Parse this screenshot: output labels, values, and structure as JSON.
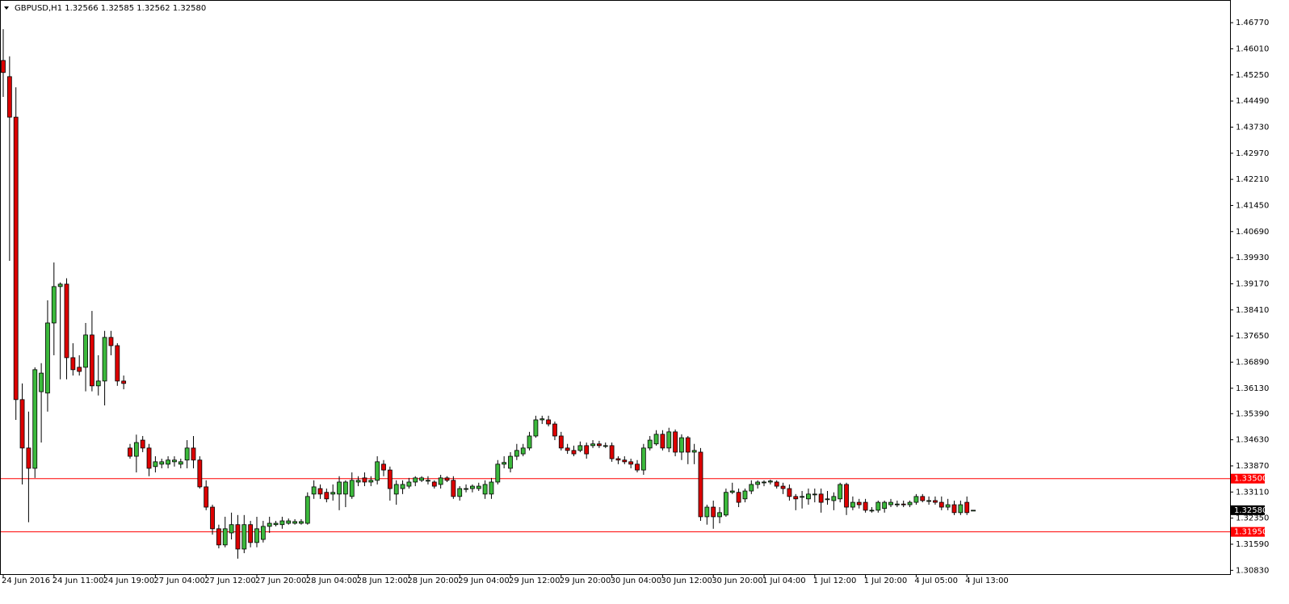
{
  "chart_data": {
    "type": "candlestick",
    "title": "GBPUSD,H1  1.32566 1.32585 1.32562 1.32580",
    "up_color": "#3cb93c",
    "down_color": "#dd0000",
    "ylim": [
      1.3072,
      1.4743
    ],
    "yticks": [
      {
        "value": 1.4677,
        "label": "1.46770"
      },
      {
        "value": 1.4601,
        "label": "1.46010"
      },
      {
        "value": 1.4525,
        "label": "1.45250"
      },
      {
        "value": 1.4449,
        "label": "1.44490"
      },
      {
        "value": 1.4373,
        "label": "1.43730"
      },
      {
        "value": 1.4297,
        "label": "1.42970"
      },
      {
        "value": 1.4221,
        "label": "1.42210"
      },
      {
        "value": 1.4145,
        "label": "1.41450"
      },
      {
        "value": 1.4069,
        "label": "1.40690"
      },
      {
        "value": 1.3993,
        "label": "1.39930"
      },
      {
        "value": 1.3917,
        "label": "1.39170"
      },
      {
        "value": 1.3841,
        "label": "1.38410"
      },
      {
        "value": 1.3765,
        "label": "1.37650"
      },
      {
        "value": 1.3689,
        "label": "1.36890"
      },
      {
        "value": 1.3613,
        "label": "1.36130"
      },
      {
        "value": 1.3539,
        "label": "1.35390"
      },
      {
        "value": 1.3463,
        "label": "1.34630"
      },
      {
        "value": 1.3387,
        "label": "1.33870"
      },
      {
        "value": 1.3311,
        "label": "1.33110"
      },
      {
        "value": 1.3235,
        "label": "1.32350"
      },
      {
        "value": 1.3159,
        "label": "1.31590"
      },
      {
        "value": 1.3083,
        "label": "1.30830"
      }
    ],
    "levels": [
      {
        "value": 1.335,
        "label": "1.33500"
      },
      {
        "value": 1.3195,
        "label": "1.31950"
      }
    ],
    "level_color": "#ff0000",
    "current_price": {
      "value": 1.3258,
      "label": "1.32580"
    },
    "categories": [
      "24 Jun 2016",
      null,
      null,
      null,
      null,
      null,
      null,
      null,
      "24 Jun 11:00",
      null,
      null,
      null,
      null,
      null,
      null,
      null,
      "24 Jun 19:00",
      null,
      null,
      null,
      null,
      null,
      null,
      null,
      "27 Jun 04:00",
      null,
      null,
      null,
      null,
      null,
      null,
      null,
      "27 Jun 12:00",
      null,
      null,
      null,
      null,
      null,
      null,
      null,
      "27 Jun 20:00",
      null,
      null,
      null,
      null,
      null,
      null,
      null,
      "28 Jun 04:00",
      null,
      null,
      null,
      null,
      null,
      null,
      null,
      "28 Jun 12:00",
      null,
      null,
      null,
      null,
      null,
      null,
      null,
      "28 Jun 20:00",
      null,
      null,
      null,
      null,
      null,
      null,
      null,
      "29 Jun 04:00",
      null,
      null,
      null,
      null,
      null,
      null,
      null,
      "29 Jun 12:00",
      null,
      null,
      null,
      null,
      null,
      null,
      null,
      "29 Jun 20:00",
      null,
      null,
      null,
      null,
      null,
      null,
      null,
      "30 Jun 04:00",
      null,
      null,
      null,
      null,
      null,
      null,
      null,
      "30 Jun 12:00",
      null,
      null,
      null,
      null,
      null,
      null,
      null,
      "30 Jun 20:00",
      null,
      null,
      null,
      null,
      null,
      null,
      null,
      "1 Jul 04:00",
      null,
      null,
      null,
      null,
      null,
      null,
      null,
      "1 Jul 12:00",
      null,
      null,
      null,
      null,
      null,
      null,
      null,
      "1 Jul 20:00",
      null,
      null,
      null,
      null,
      null,
      null,
      null,
      "4 Jul 05:00",
      null,
      null,
      null,
      null,
      null,
      null,
      null,
      "4 Jul 13:00",
      null
    ],
    "open": [
      1.4567,
      1.452,
      1.4402,
      1.358,
      1.3439,
      1.338,
      1.3603,
      1.3599,
      1.3803,
      1.3909,
      1.3916,
      1.3702,
      1.3674,
      1.3674,
      1.3768,
      1.362,
      1.3634,
      1.3761,
      1.3737,
      1.3634,
      1.3439,
      1.3415,
      1.3462,
      1.3439,
      1.3385,
      1.3392,
      1.3392,
      1.3399,
      1.3392,
      1.3404,
      1.3439,
      1.3404,
      1.3326,
      1.3267,
      1.3204,
      1.3157,
      1.3192,
      1.3216,
      1.3145,
      1.3216,
      1.3164,
      1.3173,
      1.3211,
      1.3216,
      1.3216,
      1.322,
      1.322,
      1.322,
      1.322,
      1.3305,
      1.3321,
      1.331,
      1.3305,
      1.3305,
      1.3305,
      1.3298,
      1.334,
      1.3352,
      1.334,
      1.3345,
      1.3392,
      1.3375,
      1.3305,
      1.3321,
      1.3328,
      1.334,
      1.3345,
      1.3345,
      1.334,
      1.3333,
      1.3352,
      1.3345,
      1.3298,
      1.3321,
      1.3321,
      1.3321,
      1.3305,
      1.3305,
      1.334,
      1.3392,
      1.338,
      1.3415,
      1.3422,
      1.3439,
      1.3474,
      1.3521,
      1.3521,
      1.3509,
      1.3474,
      1.3439,
      1.3432,
      1.3432,
      1.3446,
      1.3446,
      1.3451,
      1.3446,
      1.3446,
      1.3408,
      1.3404,
      1.3399,
      1.3392,
      1.3375,
      1.3439,
      1.3451,
      1.3479,
      1.3439,
      1.3486,
      1.3427,
      1.3469,
      1.3427,
      1.3427,
      1.3239,
      1.3267,
      1.3239,
      1.3244,
      1.331,
      1.331,
      1.3291,
      1.3314,
      1.3333,
      1.334,
      1.334,
      1.334,
      1.3328,
      1.3321,
      1.3298,
      1.3298,
      1.3291,
      1.3305,
      1.3305,
      1.3291,
      1.3286,
      1.3291,
      1.3333,
      1.3267,
      1.3281,
      1.3281,
      1.3258,
      1.3258,
      1.3263,
      1.3274,
      1.3274,
      1.3276,
      1.3274,
      1.3281,
      1.3298,
      1.3286,
      1.3286,
      1.3281,
      1.3267,
      1.3274,
      1.3251,
      1.3281,
      1.32566
    ],
    "high": [
      1.4658,
      1.4579,
      1.4489,
      1.3627,
      1.3545,
      1.3674,
      1.3686,
      1.3869,
      1.3979,
      1.3921,
      1.3933,
      1.3744,
      1.3709,
      1.3803,
      1.3838,
      1.3709,
      1.378,
      1.378,
      1.3744,
      1.365,
      1.3451,
      1.3478,
      1.3474,
      1.3451,
      1.3415,
      1.3408,
      1.3415,
      1.3415,
      1.3408,
      1.3462,
      1.3474,
      1.3415,
      1.3345,
      1.3274,
      1.3216,
      1.3239,
      1.3251,
      1.3244,
      1.3244,
      1.3227,
      1.3239,
      1.3227,
      1.3239,
      1.3227,
      1.3239,
      1.3234,
      1.3232,
      1.3232,
      1.331,
      1.3345,
      1.3333,
      1.3321,
      1.3333,
      1.3357,
      1.3345,
      1.3368,
      1.3357,
      1.3368,
      1.3357,
      1.3415,
      1.3404,
      1.3385,
      1.3345,
      1.3345,
      1.3352,
      1.3357,
      1.3357,
      1.3357,
      1.3345,
      1.3361,
      1.3357,
      1.3357,
      1.3328,
      1.3333,
      1.3333,
      1.3338,
      1.3345,
      1.3352,
      1.3404,
      1.3415,
      1.3427,
      1.3451,
      1.3451,
      1.3486,
      1.3533,
      1.3533,
      1.3533,
      1.3516,
      1.3486,
      1.3451,
      1.3446,
      1.3458,
      1.3455,
      1.3462,
      1.346,
      1.3455,
      1.3455,
      1.3415,
      1.3415,
      1.3408,
      1.3404,
      1.3451,
      1.3474,
      1.3491,
      1.3491,
      1.3498,
      1.3493,
      1.3479,
      1.3474,
      1.3451,
      1.3439,
      1.3274,
      1.3286,
      1.3267,
      1.3321,
      1.3338,
      1.3321,
      1.3321,
      1.3345,
      1.3345,
      1.3345,
      1.3347,
      1.3345,
      1.3338,
      1.3333,
      1.3305,
      1.3314,
      1.3321,
      1.3321,
      1.3321,
      1.3314,
      1.331,
      1.3338,
      1.3338,
      1.3298,
      1.3291,
      1.3291,
      1.3267,
      1.3286,
      1.3286,
      1.3291,
      1.3286,
      1.3286,
      1.3286,
      1.3305,
      1.3305,
      1.3298,
      1.3298,
      1.3298,
      1.3291,
      1.3286,
      1.3286,
      1.3298,
      1.32585
    ],
    "low": [
      1.4461,
      1.3984,
      1.3521,
      1.3333,
      1.3223,
      1.3352,
      1.3455,
      1.3545,
      1.3709,
      1.3639,
      1.3639,
      1.365,
      1.365,
      1.3604,
      1.3604,
      1.3592,
      1.3563,
      1.3709,
      1.362,
      1.361,
      1.3408,
      1.3368,
      1.3427,
      1.3357,
      1.3368,
      1.338,
      1.338,
      1.3385,
      1.338,
      1.338,
      1.338,
      1.3321,
      1.3258,
      1.3187,
      1.3147,
      1.315,
      1.3173,
      1.3117,
      1.3133,
      1.315,
      1.315,
      1.3164,
      1.3192,
      1.3211,
      1.3204,
      1.3216,
      1.3216,
      1.3216,
      1.3216,
      1.3291,
      1.3291,
      1.3281,
      1.3286,
      1.3258,
      1.3267,
      1.3291,
      1.3328,
      1.3328,
      1.3328,
      1.3333,
      1.3357,
      1.3286,
      1.3274,
      1.3305,
      1.3321,
      1.3328,
      1.334,
      1.3333,
      1.3321,
      1.3321,
      1.334,
      1.3291,
      1.3286,
      1.331,
      1.331,
      1.3314,
      1.3291,
      1.3291,
      1.3333,
      1.338,
      1.3368,
      1.3404,
      1.3415,
      1.3432,
      1.3469,
      1.3509,
      1.3502,
      1.3462,
      1.3432,
      1.3422,
      1.3415,
      1.3427,
      1.3408,
      1.3439,
      1.3439,
      1.3439,
      1.3399,
      1.3392,
      1.3392,
      1.338,
      1.3368,
      1.3361,
      1.3432,
      1.3446,
      1.3432,
      1.3427,
      1.3415,
      1.3404,
      1.3392,
      1.3392,
      1.3227,
      1.3216,
      1.3204,
      1.322,
      1.3239,
      1.3305,
      1.3267,
      1.3281,
      1.3305,
      1.3321,
      1.3328,
      1.3333,
      1.3321,
      1.3305,
      1.3286,
      1.3258,
      1.3263,
      1.3274,
      1.3281,
      1.3251,
      1.3274,
      1.3258,
      1.3281,
      1.3244,
      1.3258,
      1.3263,
      1.3251,
      1.3251,
      1.3251,
      1.3251,
      1.3267,
      1.3267,
      1.3267,
      1.3267,
      1.3274,
      1.3281,
      1.3274,
      1.3274,
      1.3258,
      1.3258,
      1.3244,
      1.3244,
      1.3244,
      1.32562
    ],
    "close": [
      1.4532,
      1.4402,
      1.358,
      1.3439,
      1.338,
      1.3667,
      1.3657,
      1.3803,
      1.3909,
      1.3916,
      1.3702,
      1.3667,
      1.3662,
      1.3768,
      1.362,
      1.3634,
      1.3761,
      1.3737,
      1.3634,
      1.3627,
      1.3415,
      1.3455,
      1.3439,
      1.338,
      1.3399,
      1.3399,
      1.3404,
      1.3404,
      1.3399,
      1.3439,
      1.3404,
      1.3326,
      1.3267,
      1.3204,
      1.3157,
      1.3204,
      1.3216,
      1.3145,
      1.3216,
      1.3164,
      1.3204,
      1.3211,
      1.322,
      1.322,
      1.3227,
      1.3227,
      1.3225,
      1.3225,
      1.3298,
      1.3326,
      1.3305,
      1.3291,
      1.331,
      1.334,
      1.334,
      1.3345,
      1.3345,
      1.334,
      1.3345,
      1.3399,
      1.3375,
      1.3321,
      1.3333,
      1.3333,
      1.334,
      1.3352,
      1.3352,
      1.3345,
      1.3328,
      1.3352,
      1.3345,
      1.3298,
      1.3321,
      1.3321,
      1.3328,
      1.3328,
      1.3333,
      1.334,
      1.3392,
      1.3397,
      1.3415,
      1.3432,
      1.3439,
      1.3474,
      1.3521,
      1.3524,
      1.3509,
      1.3474,
      1.3439,
      1.3432,
      1.3422,
      1.3446,
      1.3422,
      1.3451,
      1.3446,
      1.3446,
      1.3408,
      1.3404,
      1.3399,
      1.3392,
      1.3375,
      1.3439,
      1.3462,
      1.3479,
      1.3439,
      1.3486,
      1.3427,
      1.3469,
      1.3427,
      1.3432,
      1.3239,
      1.3267,
      1.3239,
      1.3251,
      1.331,
      1.3314,
      1.3281,
      1.3314,
      1.3333,
      1.334,
      1.334,
      1.3343,
      1.3328,
      1.3321,
      1.3298,
      1.3291,
      1.3298,
      1.3305,
      1.3305,
      1.3281,
      1.3291,
      1.3298,
      1.3333,
      1.3267,
      1.3281,
      1.3274,
      1.3258,
      1.3258,
      1.3281,
      1.3281,
      1.3281,
      1.3276,
      1.3274,
      1.3281,
      1.3298,
      1.3286,
      1.3286,
      1.3281,
      1.3267,
      1.3274,
      1.3251,
      1.3274,
      1.3251,
      1.3258
    ]
  }
}
